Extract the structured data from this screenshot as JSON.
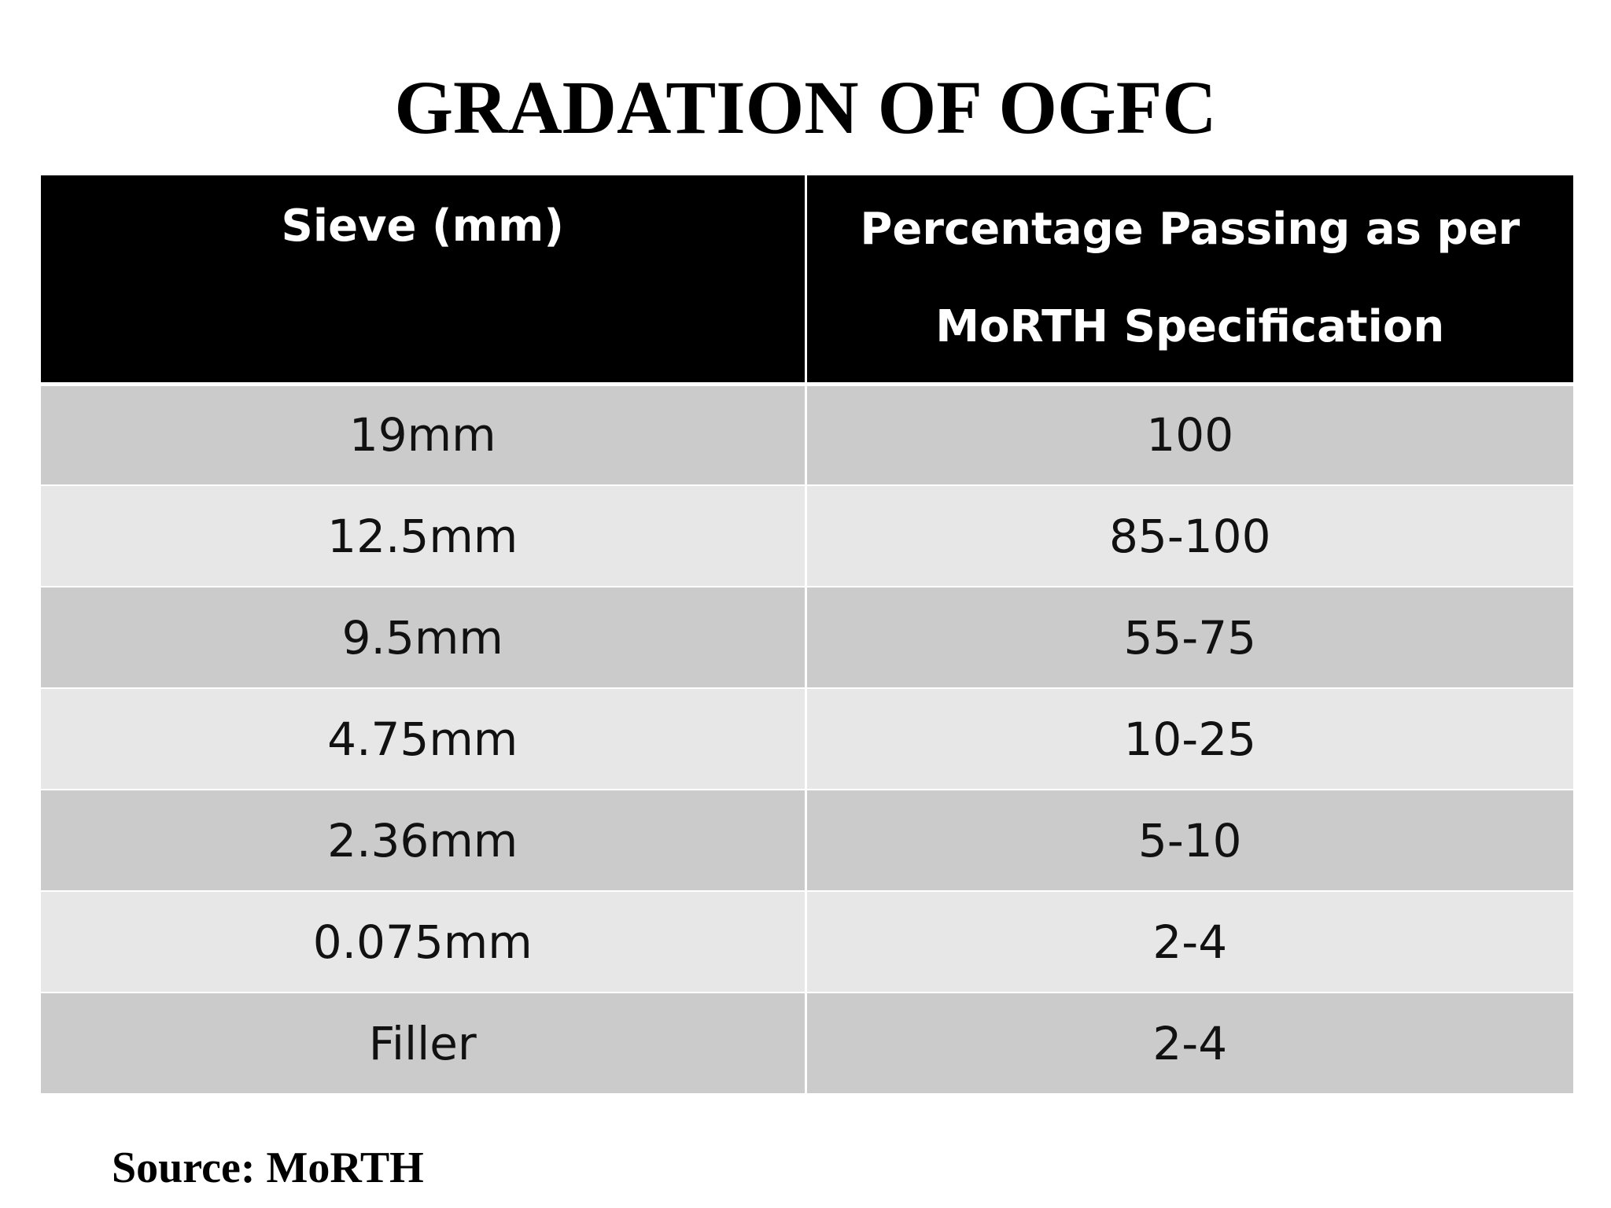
{
  "slide": {
    "title": "GRADATION OF OGFC",
    "source": "Source: MoRTH"
  },
  "table": {
    "headers": [
      "Sieve (mm)",
      "Percentage Passing as per MoRTH Specification"
    ],
    "rows": [
      [
        "19mm",
        "100"
      ],
      [
        "12.5mm",
        "85-100"
      ],
      [
        "9.5mm",
        "55-75"
      ],
      [
        "4.75mm",
        "10-25"
      ],
      [
        "2.36mm",
        "5-10"
      ],
      [
        "0.075mm",
        "2-4"
      ],
      [
        "Filler",
        "2-4"
      ]
    ]
  },
  "colors": {
    "header_bg": "#000000",
    "header_text": "#ffffff",
    "row_dark": "#cbcbcb",
    "row_light": "#e7e7e7"
  }
}
